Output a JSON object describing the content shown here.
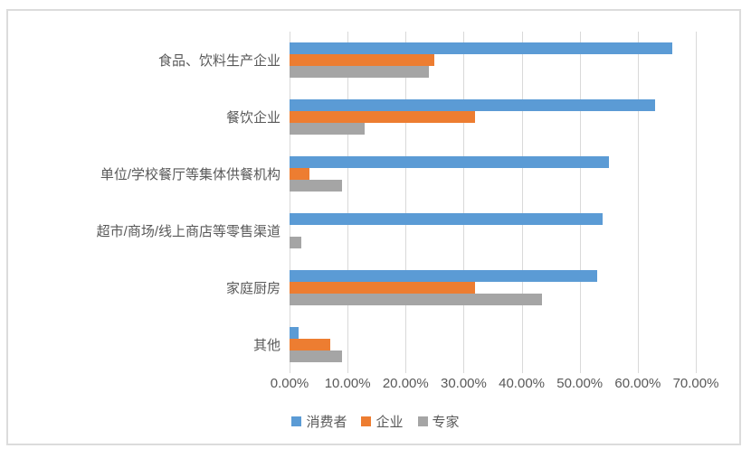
{
  "chart_data": {
    "type": "bar",
    "orientation": "horizontal",
    "title": "",
    "categories": [
      "食品、饮料生产企业",
      "餐饮企业",
      "单位/学校餐厅等集体供餐机构",
      "超市/商场/线上商店等零售渠道",
      "家庭厨房",
      "其他"
    ],
    "series": [
      {
        "name": "消费者",
        "color": "#5B9BD5",
        "values": [
          66,
          63,
          55,
          54,
          53,
          1.5
        ]
      },
      {
        "name": "企业",
        "color": "#ED7D31",
        "values": [
          25,
          32,
          3.5,
          0,
          32,
          7
        ]
      },
      {
        "name": "专家",
        "color": "#A5A5A5",
        "values": [
          24,
          13,
          9,
          2,
          43.5,
          9
        ]
      }
    ],
    "x_axis": {
      "min": 0,
      "max": 70,
      "step": 10,
      "tick_labels": [
        "0.00%",
        "10.00%",
        "20.00%",
        "30.00%",
        "40.00%",
        "50.00%",
        "60.00%",
        "70.00%"
      ]
    },
    "y_axis_label": "",
    "x_axis_label": "",
    "grid": true,
    "legend_position": "bottom"
  },
  "colors": {
    "gridline": "#D9D9D9",
    "axis_text": "#595959",
    "category_text": "#595959",
    "card_border": "#DCDCDC",
    "background": "#FFFFFF"
  }
}
